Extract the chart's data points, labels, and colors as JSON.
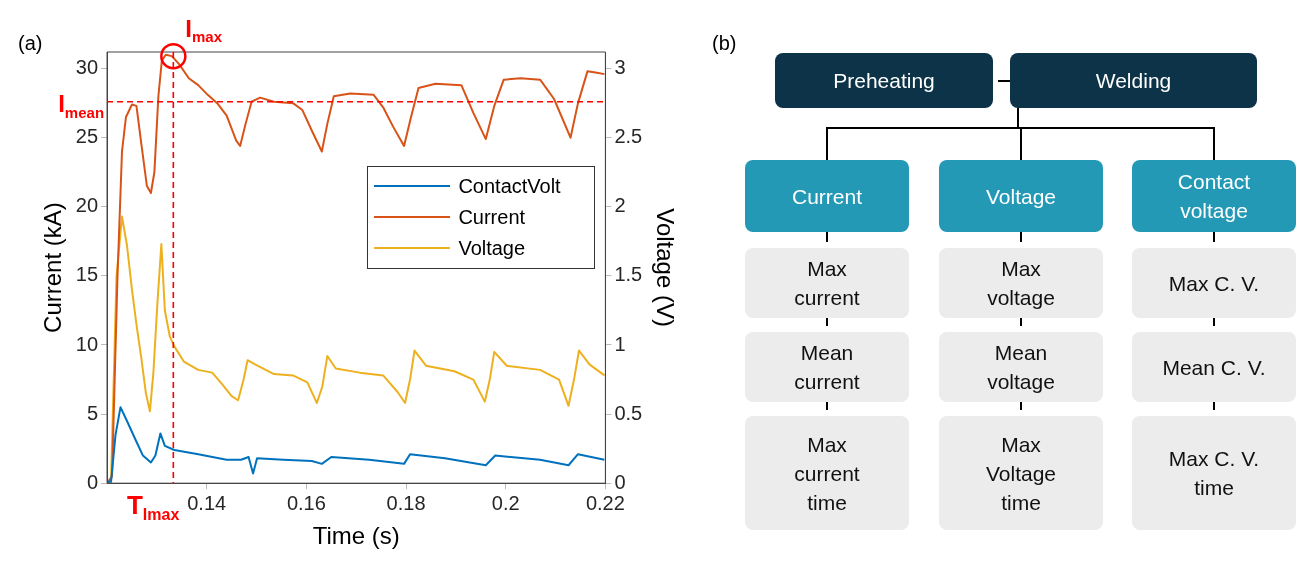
{
  "chart_data": [
    {
      "type": "line",
      "title": "(a)",
      "xlabel": "Time (s)",
      "ylabel": "Current (kA)",
      "y2label": "Voltage (V)",
      "xlim": [
        0.12,
        0.22
      ],
      "xticks": [
        0.14,
        0.16,
        0.18,
        0.2,
        0.22
      ],
      "ylim": [
        0,
        31.2
      ],
      "yticks": [
        0,
        5,
        10,
        15,
        20,
        25,
        30
      ],
      "y2lim": [
        0,
        3.12
      ],
      "y2ticks": [
        0,
        0.5,
        1,
        1.5,
        2,
        2.5,
        3
      ],
      "legend": "right",
      "marker": "none",
      "line_style": "solid",
      "series": [
        {
          "name": "ContactVolt",
          "color": "#0072bd",
          "axis": "y2",
          "x": [
            0.12,
            0.1208,
            0.1217,
            0.1227,
            0.124,
            0.1259,
            0.1272,
            0.1288,
            0.1297,
            0.1307,
            0.1316,
            0.1335,
            0.1383,
            0.144,
            0.1469,
            0.1484,
            0.1493,
            0.1501,
            0.1554,
            0.1611,
            0.1631,
            0.165,
            0.1726,
            0.1796,
            0.1808,
            0.1878,
            0.196,
            0.1979,
            0.2069,
            0.2126,
            0.2145,
            0.2198
          ],
          "values": [
            0.01,
            0.01,
            0.35,
            0.55,
            0.45,
            0.3,
            0.2,
            0.15,
            0.2,
            0.36,
            0.27,
            0.24,
            0.21,
            0.17,
            0.17,
            0.19,
            0.07,
            0.18,
            0.17,
            0.16,
            0.14,
            0.19,
            0.17,
            0.14,
            0.21,
            0.18,
            0.13,
            0.2,
            0.17,
            0.13,
            0.21,
            0.17
          ]
        },
        {
          "name": "Current",
          "color": "#d95319",
          "x": [
            0.12,
            0.121,
            0.1221,
            0.123,
            0.1238,
            0.125,
            0.1259,
            0.1269,
            0.128,
            0.1288,
            0.1295,
            0.1303,
            0.131,
            0.1318,
            0.133,
            0.1345,
            0.1364,
            0.1383,
            0.1402,
            0.1421,
            0.144,
            0.1459,
            0.1467,
            0.1478,
            0.149,
            0.1507,
            0.1535,
            0.1573,
            0.1592,
            0.1611,
            0.1631,
            0.1642,
            0.1655,
            0.1688,
            0.1735,
            0.1754,
            0.1774,
            0.1796,
            0.181,
            0.1825,
            0.1859,
            0.1911,
            0.1935,
            0.196,
            0.1977,
            0.1996,
            0.203,
            0.2069,
            0.2097,
            0.213,
            0.2145,
            0.2164,
            0.2183,
            0.2198
          ],
          "values": [
            0,
            0.5,
            15,
            24,
            26.5,
            27.4,
            27.3,
            24.5,
            21.5,
            21,
            22.5,
            28,
            30.6,
            31,
            30.9,
            30.3,
            29.3,
            28.8,
            28.1,
            27.5,
            26.6,
            24.8,
            24.4,
            26,
            27.6,
            27.9,
            27.6,
            27.5,
            27,
            25.5,
            24,
            26,
            28,
            28.2,
            28.1,
            27.2,
            25.8,
            24.4,
            26.5,
            28.6,
            28.9,
            28.8,
            26.8,
            24.9,
            27.3,
            29.2,
            29.3,
            29.2,
            27.8,
            25,
            27.5,
            29.8,
            29.7,
            29.6
          ]
        },
        {
          "name": "Voltage",
          "color": "#edb120",
          "axis": "y2",
          "x": [
            0.12,
            0.1208,
            0.1219,
            0.123,
            0.124,
            0.125,
            0.1259,
            0.1269,
            0.1278,
            0.1286,
            0.1293,
            0.1301,
            0.1309,
            0.1316,
            0.1326,
            0.1335,
            0.1354,
            0.1383,
            0.1411,
            0.143,
            0.145,
            0.1463,
            0.1474,
            0.1482,
            0.1497,
            0.1535,
            0.1573,
            0.1602,
            0.1621,
            0.1632,
            0.1642,
            0.1659,
            0.1707,
            0.1754,
            0.1783,
            0.1798,
            0.1808,
            0.1817,
            0.184,
            0.1897,
            0.1935,
            0.1958,
            0.1968,
            0.1977,
            0.2002,
            0.2069,
            0.2107,
            0.2126,
            0.2137,
            0.2147,
            0.2168,
            0.2198
          ],
          "values": [
            0,
            0.02,
            1.5,
            1.93,
            1.72,
            1.4,
            1.15,
            0.9,
            0.65,
            0.52,
            0.8,
            1.3,
            1.73,
            1.25,
            1.06,
            0.99,
            0.88,
            0.82,
            0.8,
            0.72,
            0.63,
            0.6,
            0.75,
            0.89,
            0.86,
            0.79,
            0.78,
            0.73,
            0.58,
            0.7,
            0.92,
            0.83,
            0.8,
            0.78,
            0.66,
            0.58,
            0.75,
            0.96,
            0.85,
            0.81,
            0.75,
            0.59,
            0.75,
            0.95,
            0.85,
            0.82,
            0.75,
            0.56,
            0.75,
            0.96,
            0.86,
            0.78
          ]
        }
      ],
      "ref_lines": [
        {
          "axis": "y",
          "value": 27.6,
          "label": "I$_{mean}$",
          "color": "#ff0000",
          "line_style": "dashed"
        },
        {
          "axis": "x",
          "value": 0.1333,
          "label": "T$_{Imax}$",
          "color": "#ff0000",
          "line_style": "dashed"
        }
      ],
      "annotations": [
        {
          "text": "I$_{max}$",
          "x": 0.1333,
          "y": 30.9
        }
      ]
    },
    {
      "type": "other",
      "title": "(b)",
      "annotations": [
        "Preheating",
        "Welding",
        "Current",
        "Voltage",
        "Contact voltage",
        "Max current",
        "Mean current",
        "Max current time",
        "Max voltage",
        "Mean voltage",
        "Max Voltage time",
        "Max C. V.",
        "Mean C. V.",
        "Max C. V. time"
      ]
    }
  ]
}
